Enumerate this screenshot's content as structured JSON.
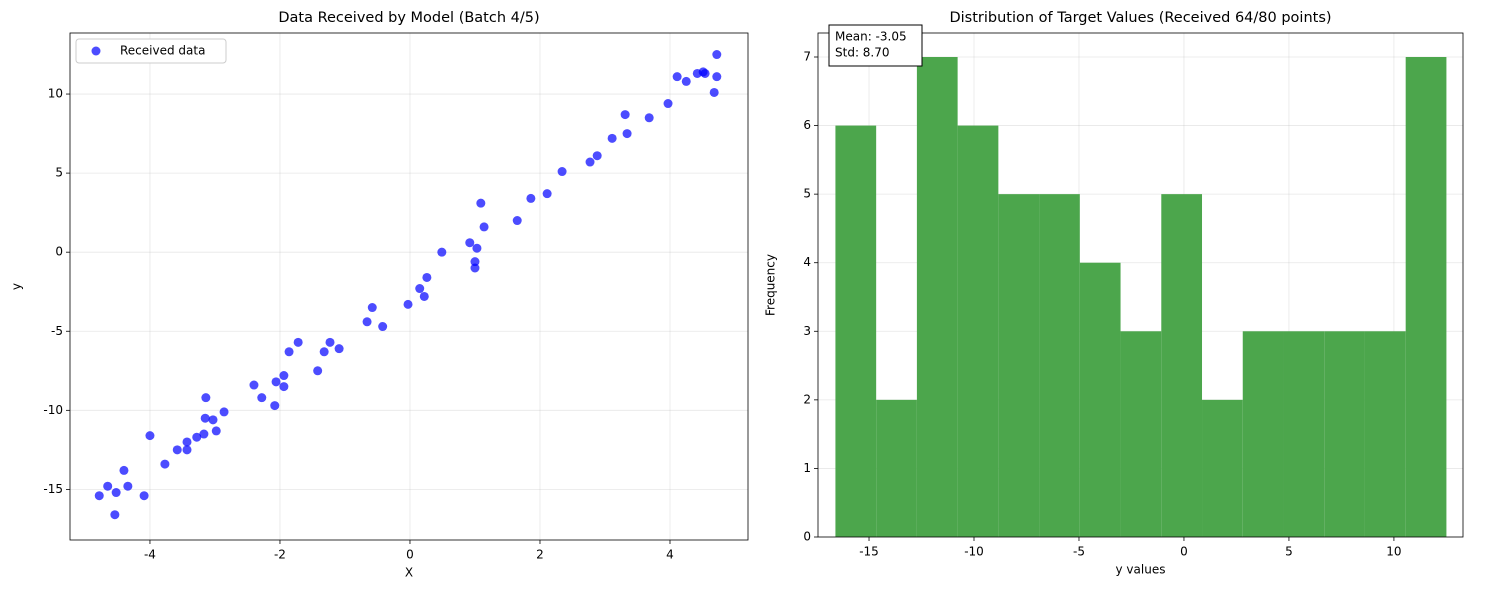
{
  "chart_data": [
    {
      "type": "scatter",
      "title": "Data Received by Model (Batch 4/5)",
      "xlabel": "X",
      "ylabel": "y",
      "series": [
        {
          "name": "Received data",
          "color": "#0000ff",
          "x": [
            -4.78,
            -4.65,
            -4.52,
            -4.54,
            -4.4,
            -4.34,
            -4.09,
            -4.0,
            -3.77,
            -3.58,
            -3.43,
            -3.43,
            -3.28,
            -3.17,
            -3.14,
            -3.15,
            -3.03,
            -2.98,
            -2.86,
            -2.4,
            -2.28,
            -2.08,
            -2.06,
            -1.94,
            -1.94,
            -1.86,
            -1.72,
            -1.42,
            -1.32,
            -1.23,
            -1.09,
            -0.66,
            -0.58,
            -0.42,
            -0.03,
            0.15,
            0.22,
            0.26,
            0.49,
            0.92,
            1.0,
            1.0,
            1.03,
            1.09,
            1.14,
            1.65,
            1.86,
            2.11,
            2.34,
            2.77,
            2.88,
            3.11,
            3.31,
            3.34,
            3.68,
            3.97,
            4.11,
            4.25,
            4.42,
            4.51,
            4.54,
            4.68,
            4.72,
            4.72
          ],
          "values": [
            -15.4,
            -14.8,
            -15.2,
            -16.6,
            -13.8,
            -14.8,
            -15.4,
            -11.6,
            -13.4,
            -12.5,
            -12.0,
            -12.5,
            -11.7,
            -11.5,
            -9.2,
            -10.5,
            -10.6,
            -11.3,
            -10.1,
            -8.4,
            -9.2,
            -9.7,
            -8.2,
            -8.5,
            -7.8,
            -6.3,
            -5.7,
            -7.5,
            -6.3,
            -5.7,
            -6.1,
            -4.4,
            -3.5,
            -4.7,
            -3.3,
            -2.3,
            -2.8,
            -1.6,
            0.0,
            0.6,
            -0.6,
            -1.0,
            0.25,
            3.1,
            1.6,
            2.0,
            3.4,
            3.7,
            5.1,
            5.7,
            6.1,
            7.2,
            8.7,
            7.5,
            8.5,
            9.4,
            11.1,
            10.8,
            11.3,
            11.4,
            11.3,
            10.1,
            12.5,
            11.1
          ]
        }
      ],
      "xlim": [
        -5.23,
        5.2
      ],
      "ylim": [
        -18.2,
        13.86
      ],
      "xticks": [
        -4,
        -2,
        0,
        2,
        4
      ],
      "yticks": [
        -15,
        -10,
        -5,
        0,
        5,
        10
      ],
      "grid": true,
      "legend": "upper-left"
    },
    {
      "type": "histogram",
      "title": "Distribution of Target Values (Received 64/80 points)",
      "xlabel": "y values",
      "ylabel": "Frequency",
      "color": "#4ca64c",
      "bins": [
        -16.6,
        -14.66,
        -12.72,
        -10.78,
        -8.84,
        -6.9,
        -4.96,
        -3.02,
        -1.08,
        0.86,
        2.8,
        4.74,
        6.68,
        8.62,
        10.56,
        12.5
      ],
      "values": [
        6,
        2,
        7,
        6,
        5,
        5,
        4,
        3,
        5,
        2,
        3,
        3,
        3,
        3,
        7
      ],
      "xlim": [
        -17.43,
        13.29
      ],
      "ylim": [
        0,
        7.35
      ],
      "xticks": [
        -15,
        -10,
        -5,
        0,
        5,
        10
      ],
      "yticks": [
        0,
        1,
        2,
        3,
        4,
        5,
        6,
        7
      ],
      "grid": true,
      "annotation": [
        "Mean: -3.05",
        "Std: 8.70"
      ]
    }
  ]
}
